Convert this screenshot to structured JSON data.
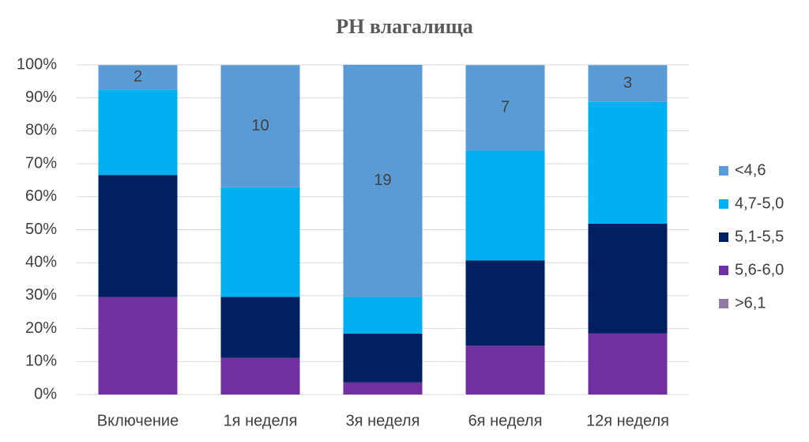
{
  "chart_data": {
    "type": "stacked_bar",
    "title": "PH влагалища",
    "categories": [
      "Включение",
      "1я неделя",
      "3я неделя",
      "6я неделя",
      "12я неделя"
    ],
    "series": [
      {
        "name": ">6,1",
        "color": "#8e7ca6",
        "values": [
          0,
          0,
          0,
          0,
          0
        ]
      },
      {
        "name": "5,6-6,0",
        "color": "#7030a0",
        "values": [
          29.6,
          11.1,
          3.7,
          14.8,
          18.5
        ]
      },
      {
        "name": "5,1-5,5",
        "color": "#002060",
        "values": [
          37.0,
          18.5,
          14.8,
          25.9,
          33.3
        ]
      },
      {
        "name": "4,7-5,0",
        "color": "#00b0f0",
        "values": [
          25.9,
          33.3,
          11.1,
          33.3,
          37.0
        ]
      },
      {
        "name": "<4,6",
        "color": "#5b9bd5",
        "values": [
          7.4,
          37.0,
          70.4,
          25.9,
          11.1
        ],
        "value_labels": [
          "2",
          "10",
          "19",
          "7",
          "3"
        ]
      }
    ],
    "ylim": [
      0,
      100
    ],
    "yticks": [
      {
        "value": 0,
        "label": "0%"
      },
      {
        "value": 10,
        "label": "10%"
      },
      {
        "value": 20,
        "label": "20%"
      },
      {
        "value": 30,
        "label": "30%"
      },
      {
        "value": 40,
        "label": "40%"
      },
      {
        "value": 50,
        "label": "50%"
      },
      {
        "value": 60,
        "label": "60%"
      },
      {
        "value": 70,
        "label": "70%"
      },
      {
        "value": 80,
        "label": "80%"
      },
      {
        "value": 90,
        "label": "90%"
      },
      {
        "value": 100,
        "label": "100%"
      }
    ],
    "grid": true,
    "legend": "right"
  }
}
